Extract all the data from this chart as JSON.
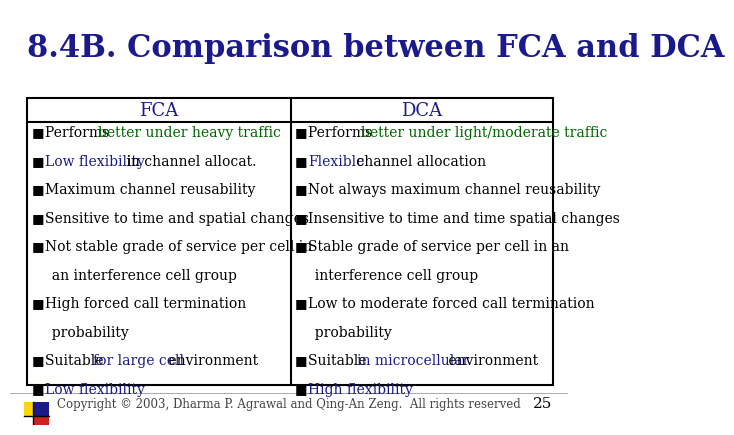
{
  "title": "8.4B. Comparison between FCA and DCA",
  "title_color": "#1a1a8c",
  "title_fontsize": 22,
  "bg_color": "#ffffff",
  "table_border_color": "#000000",
  "header_text_color": "#1a1a8c",
  "header_fontsize": 13,
  "fca_header": "FCA",
  "dca_header": "DCA",
  "body_fontsize": 10,
  "green_color": "#006400",
  "blue_color": "#1a1a8c",
  "black_color": "#000000",
  "footer_text": "Copyright © 2003, Dharma P. Agrawal and Qing-An Zeng.  All rights reserved",
  "footer_fontsize": 8.5,
  "page_number": "25",
  "fca_rows": [
    [
      {
        "text": "Performs ",
        "color": "#000000"
      },
      {
        "text": "better under heavy traffic",
        "color": "#006400"
      }
    ],
    [
      {
        "text": "Low flexibility",
        "color": "#1a1a8c"
      },
      {
        "text": " in channel allocat.",
        "color": "#000000"
      }
    ],
    [
      {
        "text": "Maximum channel reusability",
        "color": "#000000"
      }
    ],
    [
      {
        "text": "Sensitive to time and spatial changes",
        "color": "#000000"
      }
    ],
    [
      {
        "text": "Not stable grade of service per cell in",
        "color": "#000000"
      }
    ],
    [
      {
        "text": "  an interference cell group",
        "color": "#000000",
        "continuation": true
      }
    ],
    [
      {
        "text": "High forced call termination",
        "color": "#000000"
      }
    ],
    [
      {
        "text": "  probability",
        "color": "#000000",
        "continuation": true
      }
    ],
    [
      {
        "text": "Suitable ",
        "color": "#000000"
      },
      {
        "text": "for large cell",
        "color": "#1a1a8c"
      },
      {
        "text": " environment",
        "color": "#000000"
      }
    ],
    [
      {
        "text": "Low flexibility",
        "color": "#1a1a8c"
      }
    ]
  ],
  "dca_rows": [
    [
      {
        "text": "Performs ",
        "color": "#000000"
      },
      {
        "text": "better under light/moderate traffic",
        "color": "#006400"
      }
    ],
    [
      {
        "text": "Flexible",
        "color": "#1a1a8c"
      },
      {
        "text": " channel allocation",
        "color": "#000000"
      }
    ],
    [
      {
        "text": "Not always maximum channel reusability",
        "color": "#000000"
      }
    ],
    [
      {
        "text": "Insensitive to time and time spatial changes",
        "color": "#000000"
      }
    ],
    [
      {
        "text": "Stable grade of service per cell in an",
        "color": "#000000"
      }
    ],
    [
      {
        "text": "  interference cell group",
        "color": "#000000",
        "continuation": true
      }
    ],
    [
      {
        "text": "Low to moderate forced call termination",
        "color": "#000000"
      }
    ],
    [
      {
        "text": "  probability",
        "color": "#000000",
        "continuation": true
      }
    ],
    [
      {
        "text": "Suitable ",
        "color": "#000000"
      },
      {
        "text": "in microcellular",
        "color": "#1a1a8c"
      },
      {
        "text": " environment",
        "color": "#000000"
      }
    ],
    [
      {
        "text": "High flexibility",
        "color": "#1a1a8c"
      }
    ]
  ]
}
